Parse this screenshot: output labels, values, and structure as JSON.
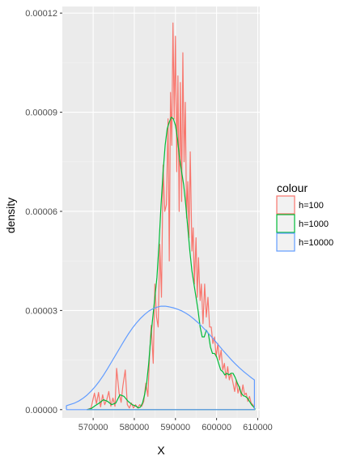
{
  "chart_data": {
    "type": "line",
    "title": "",
    "xlabel": "X",
    "ylabel": "density",
    "xlim": [
      562500,
      610500
    ],
    "ylim": [
      -2.5e-06,
      0.000122
    ],
    "x_ticks": [
      570000,
      580000,
      590000,
      600000,
      610000
    ],
    "x_tick_labels": [
      "570000",
      "580000",
      "590000",
      "600000",
      "610000"
    ],
    "y_ticks": [
      0,
      3e-05,
      6e-05,
      9e-05,
      0.00012
    ],
    "y_tick_labels": [
      "0.00000",
      "0.00003",
      "0.00006",
      "0.00009",
      "0.00012"
    ],
    "grid": true,
    "legend": {
      "title": "colour",
      "position": "right"
    },
    "series": [
      {
        "name": "h=100",
        "color": "#F8766D",
        "x": [
          568500,
          569500,
          570300,
          570800,
          571300,
          571800,
          572300,
          572800,
          573300,
          573800,
          574300,
          574800,
          575300,
          575700,
          576300,
          576800,
          577200,
          577800,
          578300,
          578800,
          579300,
          579800,
          580300,
          580800,
          581300,
          581800,
          582300,
          582800,
          583300,
          583700,
          584100,
          584600,
          585000,
          585400,
          585800,
          586200,
          586600,
          587000,
          587400,
          587800,
          588200,
          588500,
          588800,
          589100,
          589400,
          589700,
          590000,
          590300,
          590600,
          590900,
          591200,
          591500,
          591800,
          592100,
          592400,
          592700,
          593000,
          593300,
          593600,
          594000,
          594300,
          594600,
          595000,
          595300,
          595600,
          596000,
          596300,
          596700,
          597100,
          597500,
          597900,
          598300,
          598700,
          599100,
          599500,
          599900,
          600300,
          600700,
          601100,
          601500,
          601900,
          602300,
          602700,
          603100,
          603500,
          604000,
          604400,
          604800,
          605200,
          605600,
          606000,
          606400,
          606800,
          607200,
          607600,
          608000,
          608400,
          608800,
          609200
        ],
        "y": [
          0.0,
          5e-07,
          5e-06,
          1.8e-06,
          5.2e-06,
          8e-07,
          4.5e-06,
          1.5e-06,
          3e-06,
          5.5e-06,
          1e-06,
          3.5e-06,
          1e-06,
          1.25e-05,
          5e-06,
          2.2e-06,
          7e-06,
          1.2e-05,
          1.5e-06,
          5e-07,
          2e-06,
          5e-07,
          1.5e-06,
          5e-07,
          1.5e-06,
          1e-06,
          2.5e-06,
          8e-06,
          4e-06,
          1.6e-05,
          2.55e-05,
          1.4e-05,
          3.8e-05,
          2.8e-05,
          2.5e-05,
          5e-05,
          3.4e-05,
          7.4e-05,
          6e-05,
          6.2e-05,
          8.8e-05,
          4.5e-05,
          9.6e-05,
          8e-05,
          0.000117,
          8.8e-05,
          0.000113,
          7.2e-05,
          0.000101,
          6e-05,
          9.9e-05,
          6.3e-05,
          0.000108,
          7.5e-05,
          9.3e-05,
          5.8e-05,
          6.9e-05,
          5.2e-05,
          7.8e-05,
          4.8e-05,
          5.5e-05,
          3.8e-05,
          5.2e-05,
          3.4e-05,
          4.6e-05,
          3.3e-05,
          3.8e-05,
          2.6e-05,
          3.8e-05,
          2.8e-05,
          3.4e-05,
          2.5e-05,
          2.5e-05,
          2e-05,
          2.2e-05,
          1.6e-05,
          2e-05,
          1.5e-05,
          1.8e-05,
          1.2e-05,
          1.4e-05,
          9.5e-06,
          1.3e-05,
          9e-06,
          1.1e-05,
          8e-06,
          5.5e-06,
          9e-06,
          5e-06,
          7e-06,
          4e-06,
          7.5e-06,
          4.5e-06,
          5e-06,
          2.5e-06,
          4e-06,
          2e-06,
          1.5e-06,
          5e-07
        ]
      },
      {
        "name": "h=1000",
        "color": "#00BA38",
        "x": [
          568500,
          569500,
          570500,
          571500,
          572500,
          573500,
          574500,
          575500,
          576500,
          577500,
          578500,
          579500,
          580500,
          581000,
          581500,
          582000,
          582500,
          583000,
          583500,
          584000,
          584500,
          585000,
          585500,
          586000,
          586500,
          587000,
          587500,
          588000,
          588500,
          589000,
          589500,
          590000,
          590500,
          591000,
          591500,
          592000,
          592500,
          593000,
          593500,
          594000,
          594500,
          595000,
          595500,
          596000,
          596500,
          597000,
          597500,
          598000,
          598500,
          599000,
          599500,
          600000,
          600500,
          601000,
          601500,
          602000,
          602500,
          603000,
          603500,
          604000,
          604500,
          605000,
          605500,
          606000,
          606500,
          607000,
          607500,
          608000,
          608500,
          609000,
          609300
        ],
        "y": [
          0.0,
          3e-07,
          1.2e-06,
          2e-06,
          3e-06,
          2.5e-06,
          1.5e-06,
          2e-06,
          4.5e-06,
          4e-06,
          2.5e-06,
          1.5e-06,
          1e-06,
          5e-07,
          8e-07,
          2e-06,
          4.5e-06,
          8e-06,
          1.4e-05,
          2.2e-05,
          2.8e-05,
          3.4e-05,
          4e-05,
          5e-05,
          6.2e-05,
          7.2e-05,
          8e-05,
          8.5e-05,
          8.7e-05,
          8.85e-05,
          8.8e-05,
          8.6e-05,
          8.2e-05,
          7.6e-05,
          7.2e-05,
          6.8e-05,
          6.2e-05,
          5.5e-05,
          4.8e-05,
          4.2e-05,
          3.8e-05,
          3.4e-05,
          3e-05,
          2.5e-05,
          2.2e-05,
          2.2e-05,
          2.4e-05,
          2.3e-05,
          1.9e-05,
          1.7e-05,
          1.7e-05,
          1.6e-05,
          1.4e-05,
          1.2e-05,
          1.15e-05,
          1.05e-05,
          1.1e-05,
          1.05e-05,
          1.1e-05,
          1.1e-05,
          9.8e-06,
          8.2e-06,
          6.8e-06,
          5e-06,
          4.2e-06,
          4e-06,
          3.5e-06,
          2.5e-06,
          1.5e-06,
          8e-07,
          3e-07
        ]
      },
      {
        "name": "h=10000",
        "color": "#619CFF",
        "x": [
          563500,
          564500,
          565500,
          566500,
          567500,
          568500,
          569500,
          570500,
          571500,
          572500,
          573500,
          574500,
          575500,
          576500,
          577500,
          578500,
          579500,
          580500,
          581500,
          582500,
          583500,
          584500,
          585500,
          586500,
          587500,
          588500,
          589500,
          590500,
          591500,
          592500,
          593500,
          594500,
          595500,
          596500,
          597500,
          598500,
          599500,
          600500,
          601500,
          602500,
          603500,
          604500,
          605500,
          606500,
          607500,
          608500,
          609200
        ],
        "y": [
          1.2e-06,
          1.6e-06,
          2e-06,
          2.6e-06,
          3.4e-06,
          4.4e-06,
          5.6e-06,
          7e-06,
          8.6e-06,
          1.04e-05,
          1.24e-05,
          1.45e-05,
          1.66e-05,
          1.87e-05,
          2.08e-05,
          2.28e-05,
          2.46e-05,
          2.62e-05,
          2.76e-05,
          2.88e-05,
          2.98e-05,
          3.05e-05,
          3.1e-05,
          3.13e-05,
          3.13e-05,
          3.11e-05,
          3.08e-05,
          3.04e-05,
          2.99e-05,
          2.92e-05,
          2.84e-05,
          2.74e-05,
          2.63e-05,
          2.51e-05,
          2.38e-05,
          2.24e-05,
          2.1e-05,
          1.95e-05,
          1.8e-05,
          1.66e-05,
          1.52e-05,
          1.39e-05,
          1.27e-05,
          1.16e-05,
          1.06e-05,
          9.6e-06,
          9e-06
        ]
      }
    ]
  }
}
